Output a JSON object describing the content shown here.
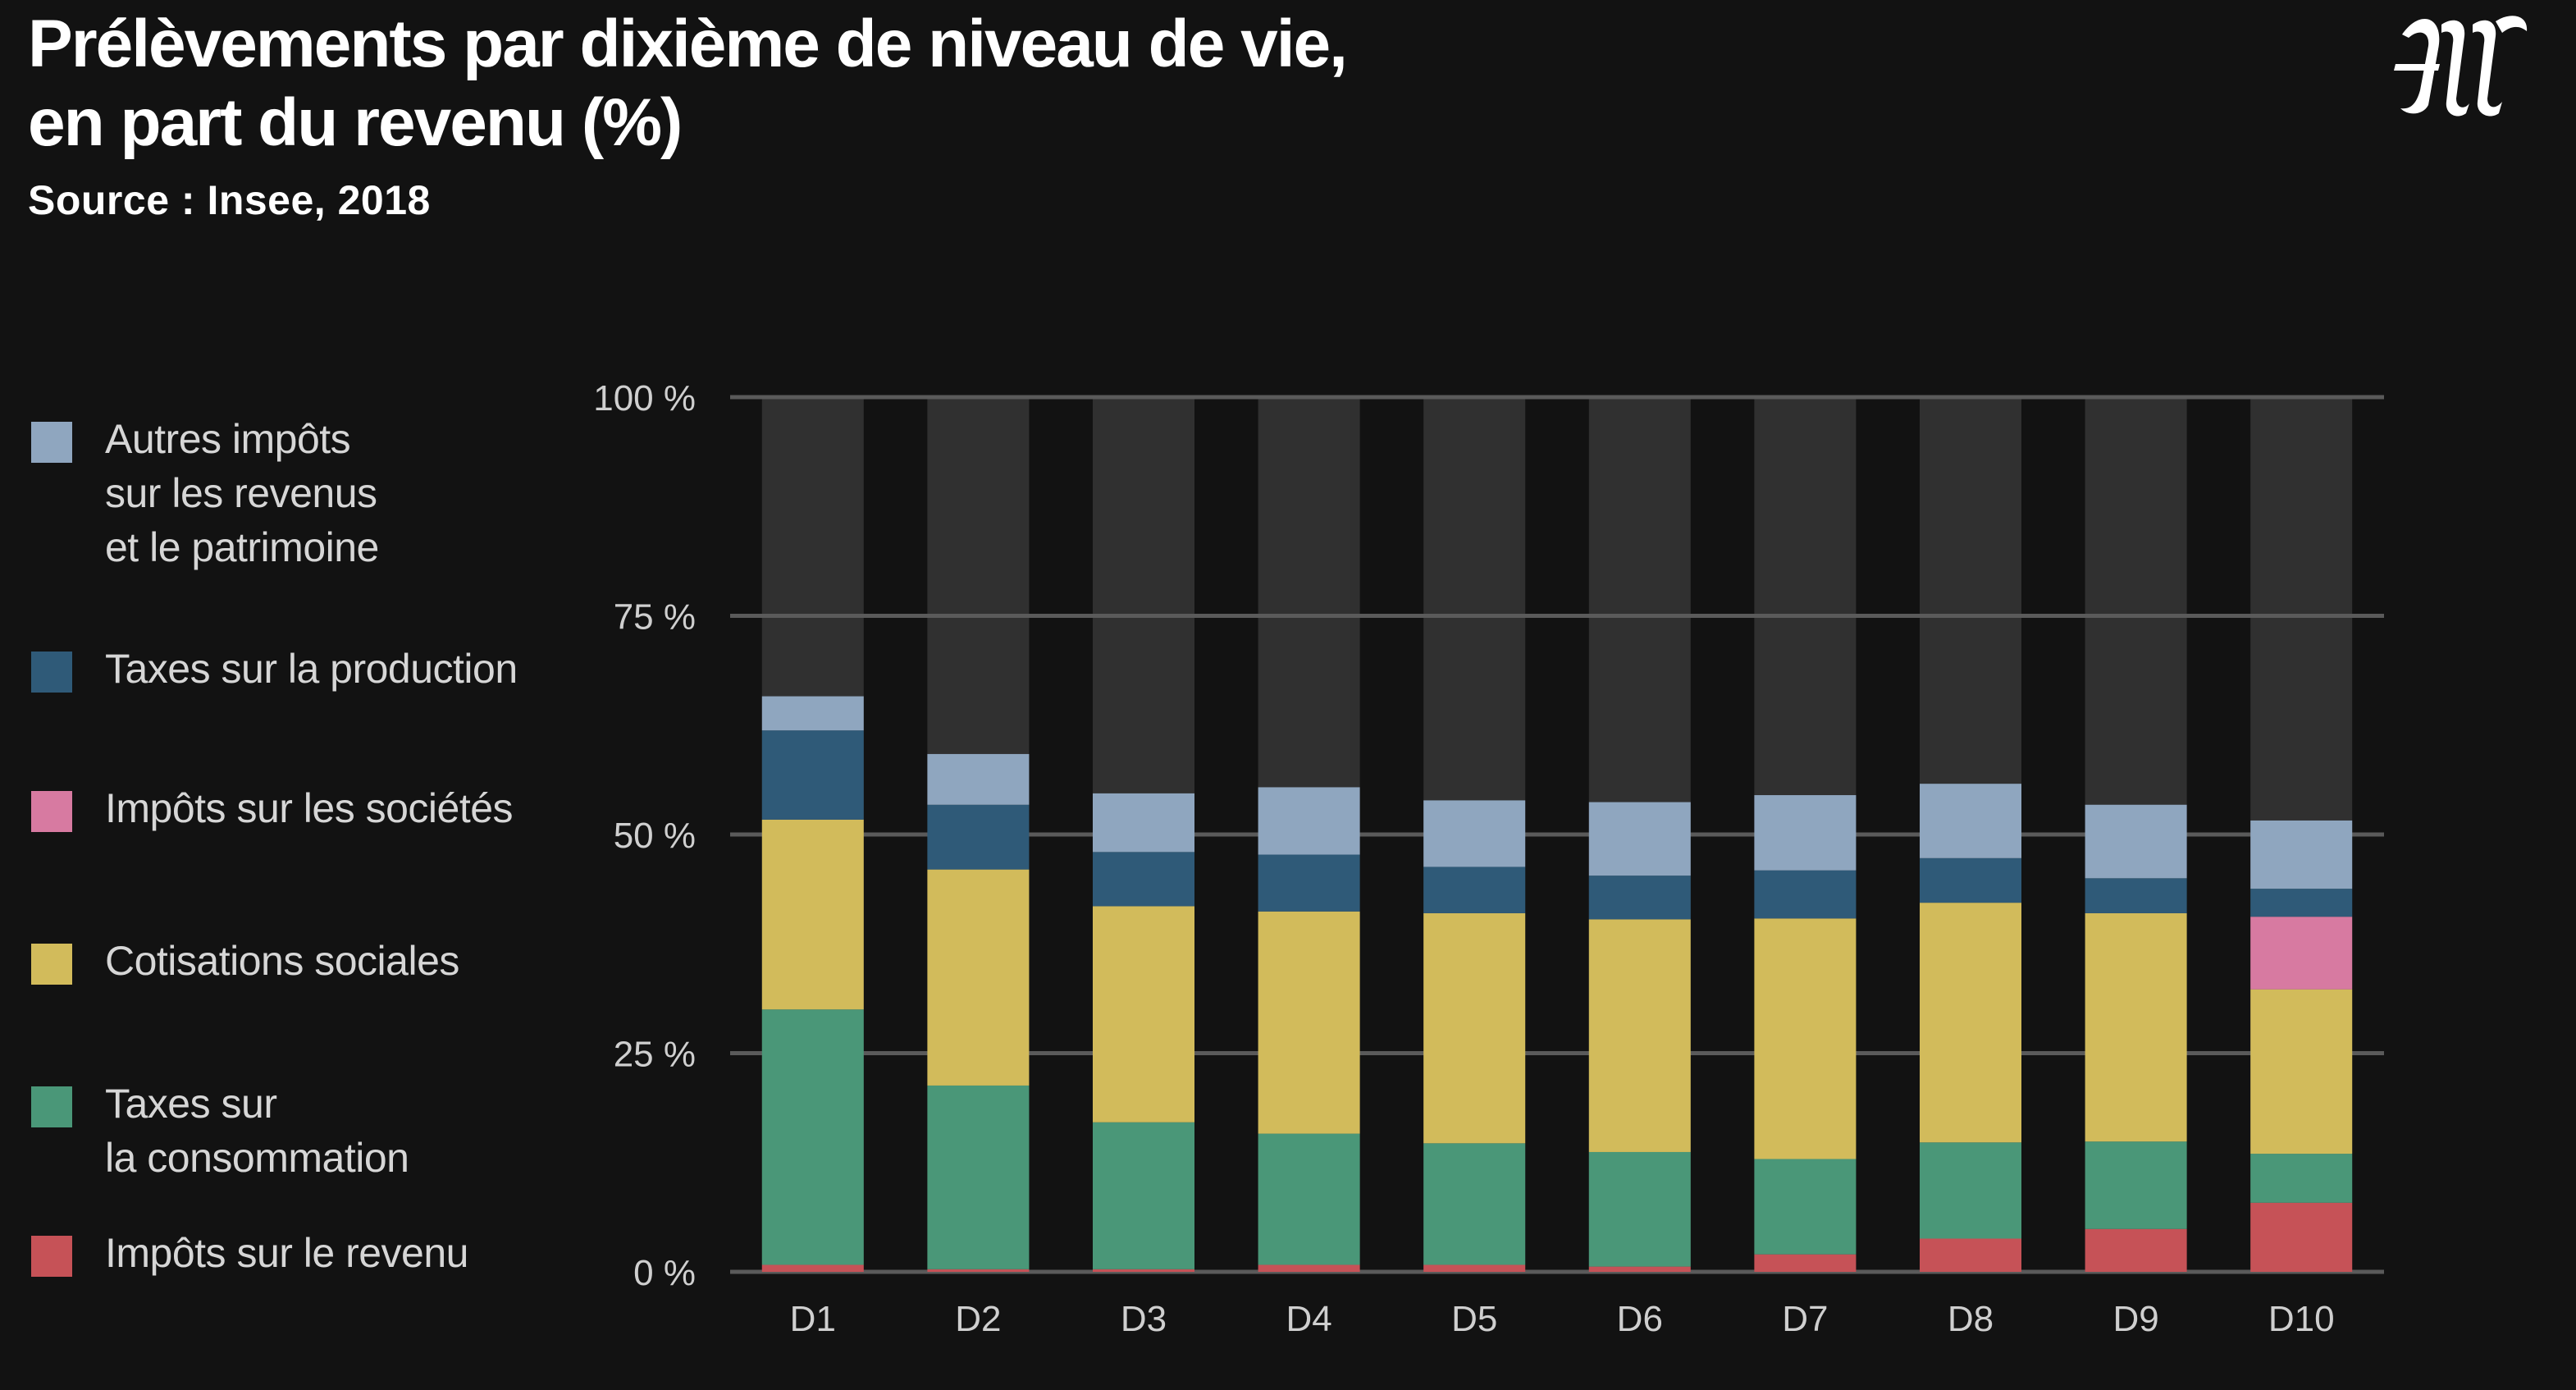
{
  "header": {
    "title_line1": "Prélèvements par dixième de niveau de vie,",
    "title_line2": "en part du revenu (%)",
    "source": "Source : Insee, 2018"
  },
  "colors": {
    "background": "#121212",
    "track": "#303030",
    "grid": "#5a5a5a"
  },
  "legend": [
    {
      "label": "Autres impôts\nsur les revenus\net le patrimoine",
      "color": "#8fa6bf"
    },
    {
      "label": "Taxes sur la production",
      "color": "#2f5a78"
    },
    {
      "label": "Impôts sur les sociétés",
      "color": "#d77aa1"
    },
    {
      "label": "Cotisations sociales",
      "color": "#d2bb5b"
    },
    {
      "label": "Taxes sur\nla consommation",
      "color": "#4a9778"
    },
    {
      "label": "Impôts sur le revenu",
      "color": "#c65257"
    }
  ],
  "chart_data": {
    "type": "bar",
    "stacked": true,
    "title": "Prélèvements par dixième de niveau de vie, en part du revenu (%)",
    "categories": [
      "D1",
      "D2",
      "D3",
      "D4",
      "D5",
      "D6",
      "D7",
      "D8",
      "D9",
      "D10"
    ],
    "ylim": [
      0,
      100
    ],
    "yticks": [
      0,
      25,
      50,
      75,
      100
    ],
    "ytick_labels": [
      "0 %",
      "25 %",
      "50 %",
      "75 %",
      "100 %"
    ],
    "grid": true,
    "legend_position": "left",
    "series": [
      {
        "name": "Impôts sur le revenu",
        "color": "#c65257",
        "values": [
          0.8,
          0.3,
          0.3,
          0.8,
          0.8,
          0.6,
          2.0,
          3.8,
          4.9,
          7.9
        ]
      },
      {
        "name": "Taxes sur la consommation",
        "color": "#4a9778",
        "values": [
          29.2,
          21.0,
          16.8,
          15.0,
          13.9,
          13.1,
          10.9,
          11.0,
          10.0,
          5.6
        ]
      },
      {
        "name": "Cotisations sociales",
        "color": "#d2bb5b",
        "values": [
          21.7,
          24.7,
          24.7,
          25.4,
          26.3,
          26.6,
          27.5,
          27.4,
          26.1,
          18.8
        ]
      },
      {
        "name": "Impôts sur les sociétés",
        "color": "#d77aa1",
        "values": [
          0,
          0,
          0,
          0,
          0,
          0,
          0,
          0,
          0,
          8.3
        ]
      },
      {
        "name": "Taxes sur la production",
        "color": "#2f5a78",
        "values": [
          10.2,
          7.4,
          6.2,
          6.5,
          5.3,
          5.0,
          5.5,
          5.1,
          4.0,
          3.2
        ]
      },
      {
        "name": "Autres impôts sur les revenus et le patrimoine",
        "color": "#8fa6bf",
        "values": [
          3.9,
          5.8,
          6.7,
          7.7,
          7.6,
          8.4,
          8.6,
          8.5,
          8.4,
          7.8
        ]
      }
    ]
  }
}
